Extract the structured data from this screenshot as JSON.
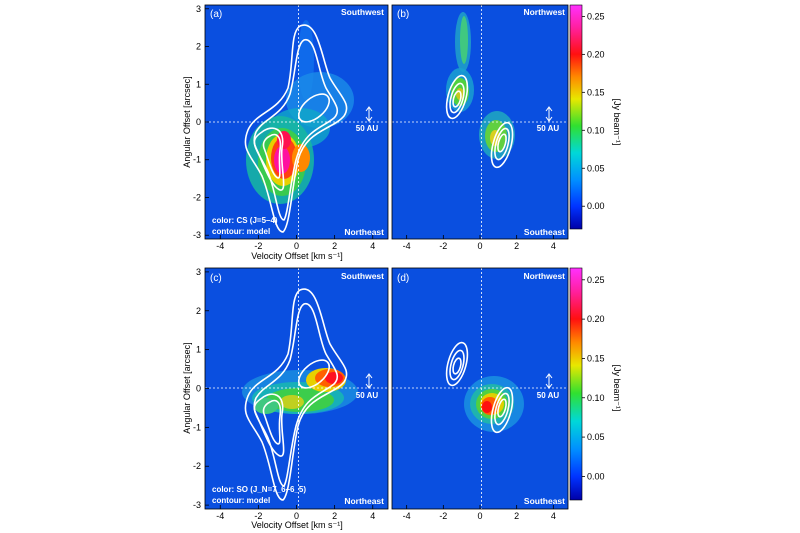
{
  "figure": {
    "x_axis_label": "Velocity Offset [km s⁻¹]",
    "y_axis_label": "Angular Offset [arcsec]",
    "colorbar_label": "[Jy beam⁻¹]",
    "scale_bar_label": "50 AU",
    "x_ticks": [
      "-4",
      "-2",
      "0",
      "2",
      "4"
    ],
    "y_ticks": [
      "3",
      "2",
      "1",
      "0",
      "-1",
      "-2",
      "-3"
    ],
    "colorbar_ticks": [
      "0.25",
      "0.20",
      "0.15",
      "0.10",
      "0.05",
      "0.00"
    ]
  },
  "panels": [
    {
      "letter": "(a)",
      "top_label": "Southwest",
      "bottom_label": "Northeast",
      "note_line1": "color: CS (J=5–4)",
      "note_line2": "contour: model"
    },
    {
      "letter": "(b)",
      "top_label": "Northwest",
      "bottom_label": "Southeast",
      "note_line1": "",
      "note_line2": ""
    },
    {
      "letter": "(c)",
      "top_label": "Southwest",
      "bottom_label": "Northeast",
      "note_line1": "color: SO (J_N=7_6–6_5)",
      "note_line2": "contour: model"
    },
    {
      "letter": "(d)",
      "top_label": "Northwest",
      "bottom_label": "Southeast",
      "note_line1": "",
      "note_line2": ""
    }
  ],
  "chart_data": [
    {
      "type": "heatmap",
      "panel": "(a)",
      "xlim": [
        -4.8,
        4.8
      ],
      "ylim": [
        -3.1,
        3.1
      ],
      "color_range": [
        -0.03,
        0.26
      ],
      "emission_peaks": [
        {
          "x": -1.0,
          "y": -1.2,
          "peak": 0.21
        },
        {
          "x": -0.8,
          "y": -0.6,
          "peak": 0.16
        },
        {
          "x": 0.6,
          "y": 0.8,
          "peak": 0.09
        },
        {
          "x": -0.1,
          "y": 0.2,
          "peak": 0.07
        }
      ]
    },
    {
      "type": "heatmap",
      "panel": "(b)",
      "xlim": [
        -4.8,
        4.8
      ],
      "ylim": [
        -3.1,
        3.1
      ],
      "color_range": [
        -0.03,
        0.26
      ],
      "emission_peaks": [
        {
          "x": -1.0,
          "y": 1.9,
          "peak": 0.1
        },
        {
          "x": -0.9,
          "y": 0.6,
          "peak": 0.12
        },
        {
          "x": 1.1,
          "y": -0.3,
          "peak": 0.11
        }
      ]
    },
    {
      "type": "heatmap",
      "panel": "(c)",
      "xlim": [
        -4.8,
        4.8
      ],
      "ylim": [
        -3.1,
        3.1
      ],
      "color_range": [
        -0.03,
        0.26
      ],
      "emission_peaks": [
        {
          "x": 1.4,
          "y": 0.3,
          "peak": 0.2
        },
        {
          "x": 0.2,
          "y": 0.0,
          "peak": 0.13
        },
        {
          "x": -1.2,
          "y": -0.3,
          "peak": 0.09
        }
      ]
    },
    {
      "type": "heatmap",
      "panel": "(d)",
      "xlim": [
        -4.8,
        4.8
      ],
      "ylim": [
        -3.1,
        3.1
      ],
      "color_range": [
        -0.03,
        0.26
      ],
      "emission_peaks": [
        {
          "x": 0.3,
          "y": -0.4,
          "peak": 0.19
        },
        {
          "x": 1.1,
          "y": -0.2,
          "peak": 0.16
        }
      ]
    }
  ],
  "colors": {
    "background_field": "#0a4fe0",
    "contour": "#ffffff"
  }
}
